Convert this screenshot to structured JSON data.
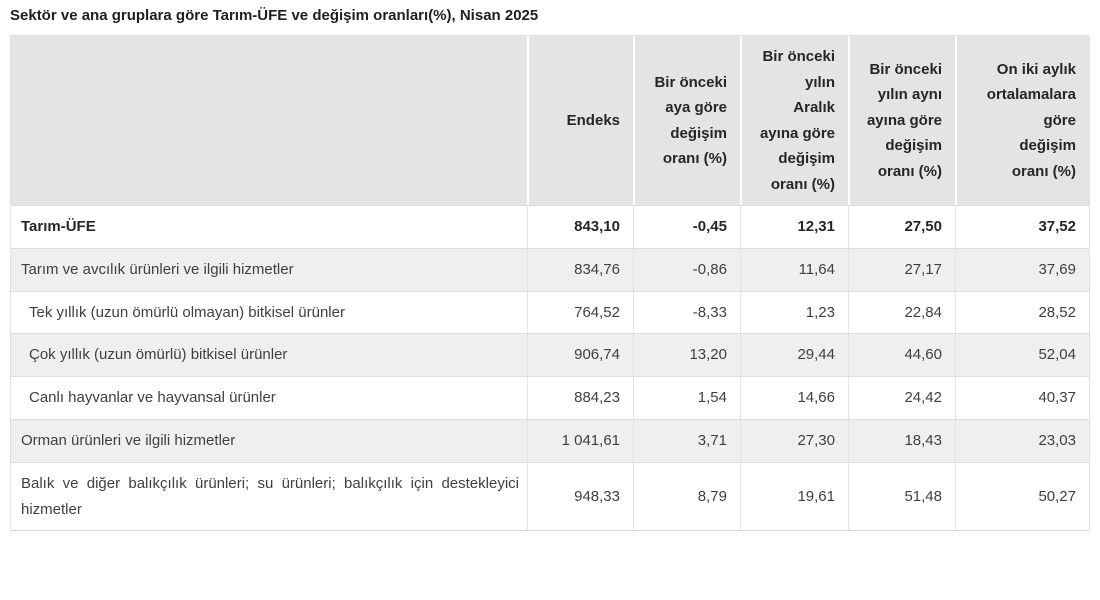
{
  "title": "Sektör ve ana gruplara göre Tarım-ÜFE ve değişim oranları(%), Nisan 2025",
  "chart_data": {
    "type": "table",
    "title": "Sektör ve ana gruplara göre Tarım-ÜFE ve değişim oranları(%), Nisan 2025",
    "columns": [
      "",
      "Endeks",
      "Bir önceki\naya göre\ndeğişim\noranı (%)",
      "Bir önceki\nyılın\nAralık\nayına göre\ndeğişim\noranı (%)",
      "Bir önceki\nyılın aynı\nayına göre\ndeğişim\noranı (%)",
      "On iki aylık\nortalamalara\ngöre\ndeğişim\noranı (%)"
    ],
    "rows": [
      {
        "label": "Tarım-ÜFE",
        "bold": true,
        "indent": false,
        "values": [
          "843,10",
          "-0,45",
          "12,31",
          "27,50",
          "37,52"
        ]
      },
      {
        "label": "Tarım ve avcılık ürünleri ve ilgili hizmetler",
        "bold": false,
        "indent": false,
        "values": [
          "834,76",
          "-0,86",
          "11,64",
          "27,17",
          "37,69"
        ]
      },
      {
        "label": "Tek yıllık (uzun ömürlü olmayan) bitkisel ürünler",
        "bold": false,
        "indent": true,
        "values": [
          "764,52",
          "-8,33",
          "1,23",
          "22,84",
          "28,52"
        ]
      },
      {
        "label": "Çok yıllık (uzun ömürlü) bitkisel ürünler",
        "bold": false,
        "indent": true,
        "values": [
          "906,74",
          "13,20",
          "29,44",
          "44,60",
          "52,04"
        ]
      },
      {
        "label": "Canlı hayvanlar ve hayvansal ürünler",
        "bold": false,
        "indent": true,
        "values": [
          "884,23",
          "1,54",
          "14,66",
          "24,42",
          "40,37"
        ]
      },
      {
        "label": "Orman ürünleri ve ilgili hizmetler",
        "bold": false,
        "indent": false,
        "values": [
          "1 041,61",
          "3,71",
          "27,30",
          "18,43",
          "23,03"
        ]
      },
      {
        "label": "Balık ve diğer balıkçılık ürünleri; su ürünleri; balıkçılık için destekleyici hizmetler",
        "bold": false,
        "indent": false,
        "values": [
          "948,33",
          "8,79",
          "19,61",
          "51,48",
          "50,27"
        ]
      }
    ]
  }
}
